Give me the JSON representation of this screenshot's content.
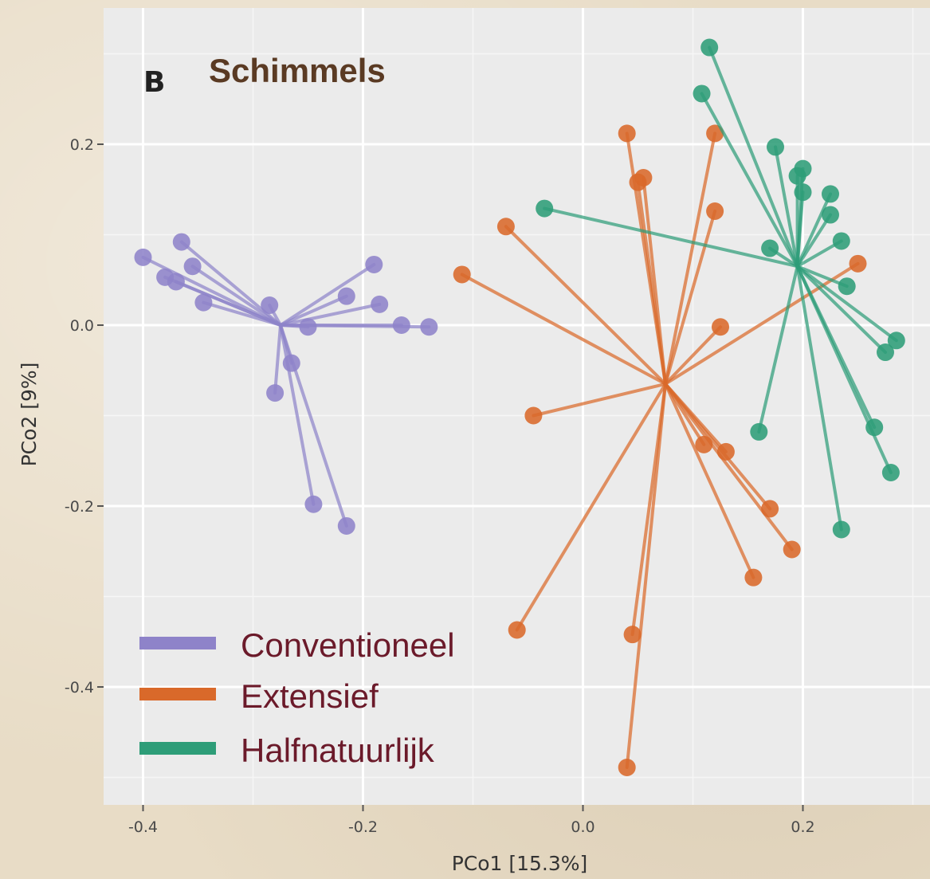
{
  "chart_data": {
    "type": "scatter",
    "panel_label": "B",
    "title": "Schimmels",
    "xlabel": "PCo1 [15.3%]",
    "ylabel": "PCo2 [9%]",
    "xlim": [
      -0.44,
      0.3
    ],
    "ylim": [
      -0.52,
      0.35
    ],
    "x_ticks": [
      -0.4,
      -0.2,
      0.0,
      0.2
    ],
    "x_tick_labels": [
      "-0.4",
      "-0.2",
      "0.0",
      "0.2"
    ],
    "y_ticks": [
      -0.4,
      -0.2,
      0.0,
      0.2
    ],
    "y_tick_labels": [
      "-0.4",
      "-0.2",
      "0.0",
      "0.2"
    ],
    "grid": true,
    "legend_position": "bottom-left",
    "series": [
      {
        "name": "Conventioneel",
        "color": "#8e83c9",
        "centroid": [
          -0.275,
          0.0
        ],
        "points": [
          [
            -0.4,
            0.075
          ],
          [
            -0.365,
            0.092
          ],
          [
            -0.38,
            0.053
          ],
          [
            -0.37,
            0.048
          ],
          [
            -0.355,
            0.065
          ],
          [
            -0.345,
            0.025
          ],
          [
            -0.285,
            0.022
          ],
          [
            -0.215,
            0.032
          ],
          [
            -0.19,
            0.067
          ],
          [
            -0.185,
            0.023
          ],
          [
            -0.165,
            0.0
          ],
          [
            -0.14,
            -0.002
          ],
          [
            -0.25,
            -0.002
          ],
          [
            -0.265,
            -0.042
          ],
          [
            -0.28,
            -0.075
          ],
          [
            -0.245,
            -0.198
          ],
          [
            -0.215,
            -0.222
          ]
        ]
      },
      {
        "name": "Extensief",
        "color": "#d9692a",
        "centroid": [
          0.075,
          -0.065
        ],
        "points": [
          [
            0.04,
            0.212
          ],
          [
            0.12,
            0.212
          ],
          [
            0.05,
            0.158
          ],
          [
            0.055,
            0.163
          ],
          [
            0.12,
            0.126
          ],
          [
            -0.07,
            0.109
          ],
          [
            -0.11,
            0.056
          ],
          [
            0.25,
            0.068
          ],
          [
            0.125,
            -0.002
          ],
          [
            -0.045,
            -0.1
          ],
          [
            0.11,
            -0.132
          ],
          [
            0.13,
            -0.14
          ],
          [
            0.17,
            -0.203
          ],
          [
            0.19,
            -0.248
          ],
          [
            0.155,
            -0.279
          ],
          [
            -0.06,
            -0.337
          ],
          [
            0.045,
            -0.342
          ],
          [
            0.04,
            -0.489
          ]
        ]
      },
      {
        "name": "Halfnatuurlijk",
        "color": "#2e9d78",
        "centroid": [
          0.195,
          0.065
        ],
        "points": [
          [
            0.115,
            0.307
          ],
          [
            0.108,
            0.256
          ],
          [
            0.175,
            0.197
          ],
          [
            0.2,
            0.173
          ],
          [
            0.195,
            0.165
          ],
          [
            0.2,
            0.147
          ],
          [
            0.225,
            0.145
          ],
          [
            0.225,
            0.122
          ],
          [
            0.235,
            0.093
          ],
          [
            0.17,
            0.085
          ],
          [
            -0.035,
            0.129
          ],
          [
            0.24,
            0.043
          ],
          [
            0.285,
            -0.017
          ],
          [
            0.275,
            -0.03
          ],
          [
            0.16,
            -0.118
          ],
          [
            0.265,
            -0.113
          ],
          [
            0.28,
            -0.163
          ],
          [
            0.235,
            -0.226
          ]
        ]
      }
    ]
  }
}
